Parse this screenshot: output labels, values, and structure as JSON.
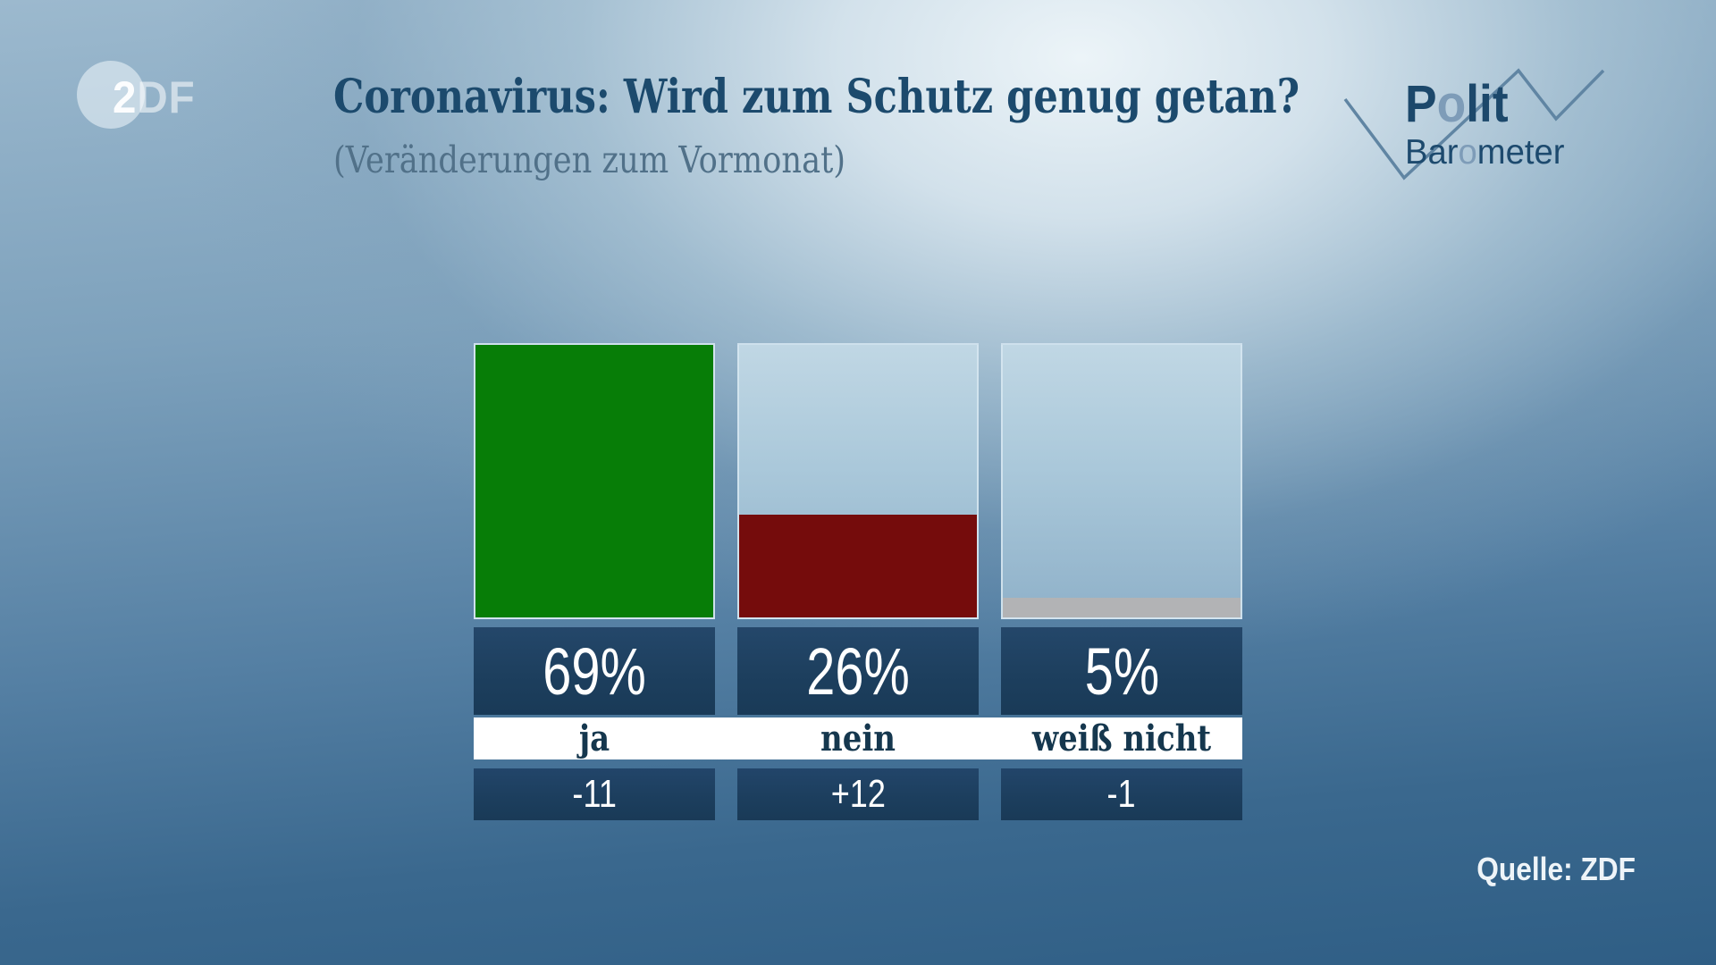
{
  "header": {
    "title": "Coronavirus: Wird zum Schutz genug getan?",
    "subtitle": "(Veränderungen zum Vormonat)"
  },
  "branding": {
    "zdf_2": "2",
    "zdf_df": "DF",
    "polit_p": "P",
    "polit_o": "o",
    "polit_lit": "lit",
    "baro_bar": "Bar",
    "baro_o": "o",
    "baro_meter": "meter"
  },
  "source": "Quelle: ZDF",
  "chart_data": {
    "type": "bar",
    "title": "Coronavirus: Wird zum Schutz genug getan?",
    "subtitle": "(Veränderungen zum Vormonat)",
    "categories": [
      "ja",
      "nein",
      "weiß nicht"
    ],
    "values": [
      69,
      26,
      5
    ],
    "value_labels": [
      "69%",
      "26%",
      "5%"
    ],
    "changes": [
      "-11",
      "+12",
      "-1"
    ],
    "bar_colors": [
      "#077d07",
      "#750c0c",
      "#b2b3b5"
    ],
    "ylim": [
      0,
      69
    ],
    "grid": false,
    "legend": false,
    "layout_note": "segment height scaled relative to max value; light track shows full column"
  },
  "colors": {
    "box_navy": "#1e3f5e",
    "band_white": "#ffffff",
    "title_navy": "#1c4a6d",
    "track_light_blue": "#aac8da",
    "background_bottom": "#2f5e85",
    "zigzag_blue": "#6085a3"
  }
}
